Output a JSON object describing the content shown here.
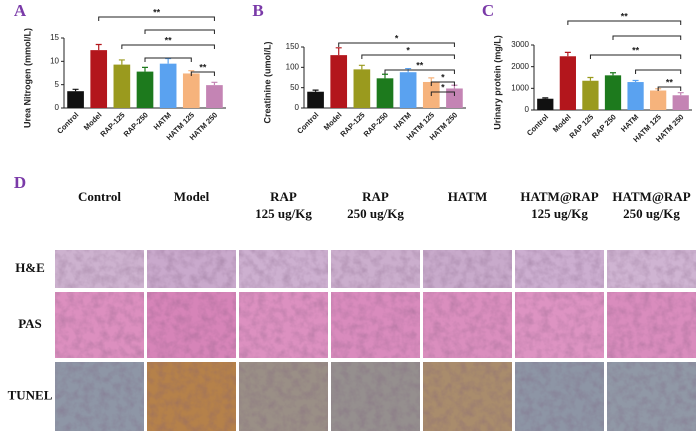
{
  "chart_data": [
    {
      "type": "bar",
      "panel": "A",
      "y_label": "Urea Nitrogen (mmol/L)",
      "categories": [
        "Control",
        "Model",
        "RAP-125",
        "RAP-250",
        "HATM",
        "HATM 125",
        "HATM 250"
      ],
      "values": [
        3.6,
        12.4,
        9.3,
        7.8,
        9.5,
        7.4,
        4.9
      ],
      "errors": [
        0.4,
        1.2,
        1.0,
        0.9,
        1.1,
        0.6,
        0.6
      ],
      "colors": [
        "#111111",
        "#b3161c",
        "#9a9a1e",
        "#1d7a1d",
        "#5aa2f0",
        "#f6b37c",
        "#c484b4"
      ],
      "ylim": [
        0,
        15
      ],
      "yticks": [
        0,
        5,
        10,
        15
      ],
      "annotations": [
        "**",
        "**",
        "**"
      ]
    },
    {
      "type": "bar",
      "panel": "B",
      "y_label": "Creatinine (umol/L)",
      "categories": [
        "Control",
        "Model",
        "RAP-125",
        "RAP-250",
        "HATM",
        "HATM 125",
        "HATM 250"
      ],
      "values": [
        40,
        130,
        95,
        73,
        88,
        64,
        48
      ],
      "errors": [
        4,
        18,
        10,
        10,
        9,
        10,
        8
      ],
      "colors": [
        "#111111",
        "#b3161c",
        "#9a9a1e",
        "#1d7a1d",
        "#5aa2f0",
        "#f6b37c",
        "#c484b4"
      ],
      "ylim": [
        0,
        150
      ],
      "yticks": [
        0,
        50,
        100,
        150
      ],
      "annotations": [
        "*",
        "*",
        "**",
        "*",
        "*"
      ]
    },
    {
      "type": "bar",
      "panel": "C",
      "y_label": "Urinary protein (mg/L)",
      "categories": [
        "Control",
        "Model",
        "RAP 125",
        "RAP 250",
        "HATM",
        "HATM 125",
        "HATM 250"
      ],
      "values": [
        520,
        2480,
        1350,
        1600,
        1290,
        900,
        680
      ],
      "errors": [
        40,
        180,
        150,
        120,
        70,
        80,
        120
      ],
      "colors": [
        "#111111",
        "#b3161c",
        "#9a9a1e",
        "#1d7a1d",
        "#5aa2f0",
        "#f6b37c",
        "#c484b4"
      ],
      "ylim": [
        0,
        3000
      ],
      "yticks": [
        0,
        1000,
        2000,
        3000
      ],
      "annotations": [
        "**",
        "**",
        "**"
      ]
    }
  ],
  "histology": {
    "panel": "D",
    "columns": [
      [
        "Control"
      ],
      [
        "Model"
      ],
      [
        "RAP",
        "125 ug/Kg"
      ],
      [
        "RAP",
        "250 ug/Kg"
      ],
      [
        "HATM"
      ],
      [
        "HATM@RAP",
        "125 ug/Kg"
      ],
      [
        "HATM@RAP",
        "250 ug/Kg"
      ]
    ],
    "rows": [
      "H&E",
      "PAS",
      "TUNEL"
    ]
  }
}
